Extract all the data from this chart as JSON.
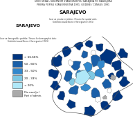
{
  "title_line1": "UDIO SRBA U UKUPNOM STANOVNISTVU SARAJEVA PO NASELJIMA",
  "title_line2": "PREMA POPISU STANOVNISTVA 1991. GODINE / CENSUS 1991",
  "subtitle1": "SARAJEVO",
  "source1": "Izvor za prostorne jedinice / Source for spatial units:",
  "source1b": "Statisticki zavod Bosne i Hercegovine (1991)",
  "subtitle2": "SARAJEVO",
  "source2": "Izvor za demografske podatke / Source for demographic data:",
  "source2b": "Statisticki zavod Bosne i Hercegovine (1991)",
  "legend_labels": [
    "> 66.66%",
    "50 - 66%",
    "33 - 50%",
    "20 - 33%",
    "< 20%"
  ],
  "legend_colors": [
    "#003580",
    "#1a5fa8",
    "#3388cc",
    "#7ec8e3",
    "#b0e8f8"
  ],
  "gray_color": "#aaaaaa",
  "gray_label": "Dio naselja / Part of administrative",
  "background_color": "#ffffff",
  "map_bg": "#e8e8e8"
}
